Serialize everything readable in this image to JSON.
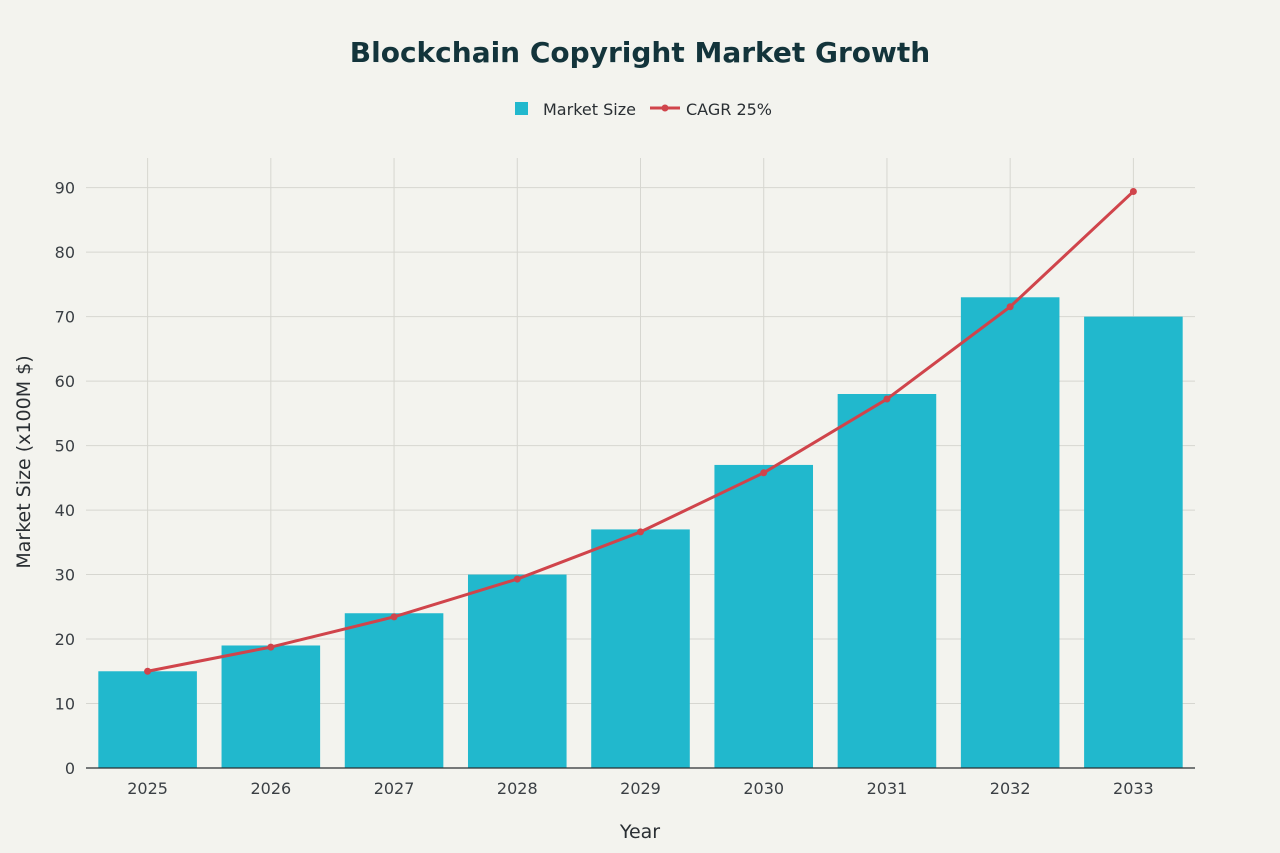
{
  "chart_data": {
    "type": "bar",
    "title": "Blockchain Copyright Market Growth",
    "xlabel": "Year",
    "ylabel": "Market Size (x100M $)",
    "ylim": [
      0,
      95
    ],
    "yticks": [
      0,
      10,
      20,
      30,
      40,
      50,
      60,
      70,
      80,
      90
    ],
    "categories": [
      "2025",
      "2026",
      "2027",
      "2028",
      "2029",
      "2030",
      "2031",
      "2032",
      "2033"
    ],
    "series": [
      {
        "name": "Market Size",
        "type": "bar",
        "color": "#21b8cd",
        "values": [
          15,
          19,
          24,
          30,
          37,
          47,
          58,
          73,
          70
        ]
      },
      {
        "name": "CAGR 25%",
        "type": "line",
        "color": "#d0444b",
        "values": [
          15.0,
          18.75,
          23.44,
          29.3,
          36.62,
          45.78,
          57.22,
          71.53,
          89.41
        ]
      }
    ],
    "legend": "top-center",
    "grid": true
  }
}
